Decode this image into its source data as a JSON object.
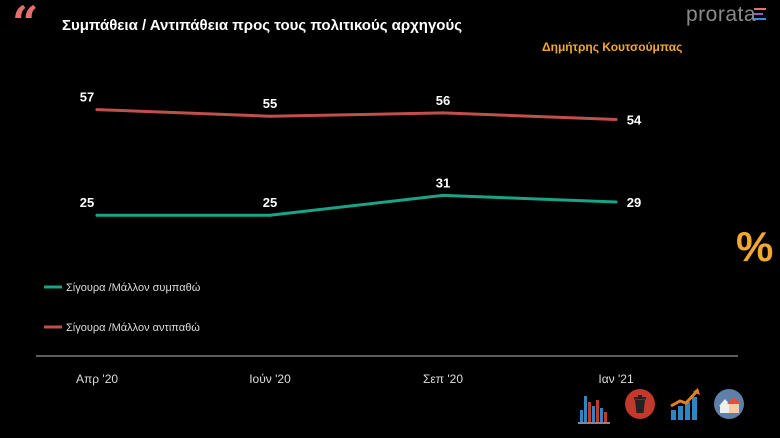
{
  "header": {
    "title": "Συμπάθεια / Αντιπάθεια προς τους πολιτικούς αρχηγούς",
    "subtitle": "Δημήτρης Κουτσούμπας",
    "logo": "prorata",
    "quote_mark": "“",
    "percent_symbol": "%"
  },
  "colors": {
    "accent": "#f0a830",
    "quote": "#e56f6f",
    "negative": "#c0504d",
    "positive": "#1aa387",
    "axis": "#bbbbbb",
    "text": "#ffffff"
  },
  "icons": [
    "bar-chart-icon",
    "trash-can-icon",
    "growth-chart-icon",
    "houses-icon"
  ],
  "chart_data": {
    "type": "line",
    "categories": [
      "Απρ '20",
      "Ιούν '20",
      "Σεπ '20",
      "Ιαν '21"
    ],
    "series": [
      {
        "name": "Σίγουρα /Μάλλον αντιπαθώ",
        "values": [
          57,
          55,
          56,
          54
        ],
        "color": "#c0504d"
      },
      {
        "name": "Σίγουρα /Μάλλον συμπαθώ",
        "values": [
          25,
          25,
          31,
          29
        ],
        "color": "#1aa387"
      }
    ],
    "legend": [
      "Σίγουρα /Μάλλον συμπαθώ",
      "Σίγουρα /Μάλλον αντιπαθώ"
    ],
    "legend_position": "left",
    "grid": false
  }
}
